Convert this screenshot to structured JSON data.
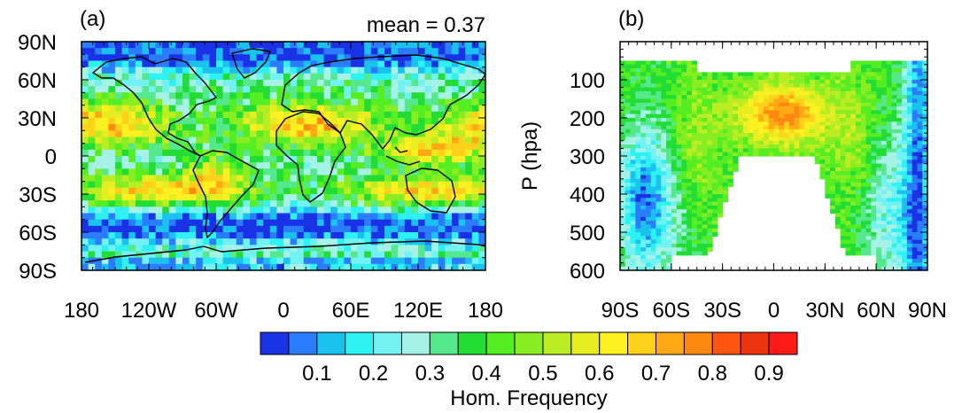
{
  "colors": {
    "palette": [
      "#1a32e6",
      "#2a7dff",
      "#19c2ef",
      "#2ef2f2",
      "#72f2f2",
      "#a6f2e6",
      "#55e88c",
      "#22dd33",
      "#55ee22",
      "#88ee22",
      "#bbee22",
      "#e6ee22",
      "#fff022",
      "#ffd11a",
      "#ffaa14",
      "#ff8811",
      "#ff5511",
      "#ee3311",
      "#ff1a1a"
    ],
    "land_outline": "#000000",
    "missing": "#ffffff"
  },
  "chart_data": [
    {
      "id": "a",
      "type": "heatmap",
      "panel_label": "(a)",
      "annotation": "mean = 0.37",
      "x_ticks": [
        "180",
        "120W",
        "60W",
        "0",
        "60E",
        "120E",
        "180"
      ],
      "x_tick_values": [
        -180,
        -120,
        -60,
        0,
        60,
        120,
        180
      ],
      "y_ticks": [
        "90N",
        "60N",
        "30N",
        "0",
        "30S",
        "60S",
        "90S"
      ],
      "y_tick_values": [
        90,
        60,
        30,
        0,
        -30,
        -60,
        -90
      ],
      "xlim": [
        -180,
        180
      ],
      "ylim": [
        -90,
        90
      ],
      "mean": 0.37
    },
    {
      "id": "b",
      "type": "heatmap",
      "panel_label": "(b)",
      "ylabel": "P (hpa)",
      "x_ticks": [
        "90S",
        "60S",
        "30S",
        "0",
        "30N",
        "60N",
        "90N"
      ],
      "x_tick_values": [
        -90,
        -60,
        -30,
        0,
        30,
        60,
        90
      ],
      "y_ticks": [
        "100",
        "200",
        "300",
        "400",
        "500",
        "600"
      ],
      "y_tick_values": [
        100,
        200,
        300,
        400,
        500,
        600
      ],
      "xlim": [
        -90,
        90
      ],
      "ylim": [
        600,
        0
      ],
      "pressure_top": 50
    }
  ],
  "colorbar": {
    "label": "Hom. Frequency",
    "tick_labels": [
      "0.1",
      "0.2",
      "0.3",
      "0.4",
      "0.5",
      "0.6",
      "0.7",
      "0.8",
      "0.9"
    ],
    "tick_values": [
      0.1,
      0.2,
      0.3,
      0.4,
      0.5,
      0.6,
      0.7,
      0.8,
      0.9
    ],
    "range": [
      0,
      1
    ],
    "n_colors": 19
  }
}
